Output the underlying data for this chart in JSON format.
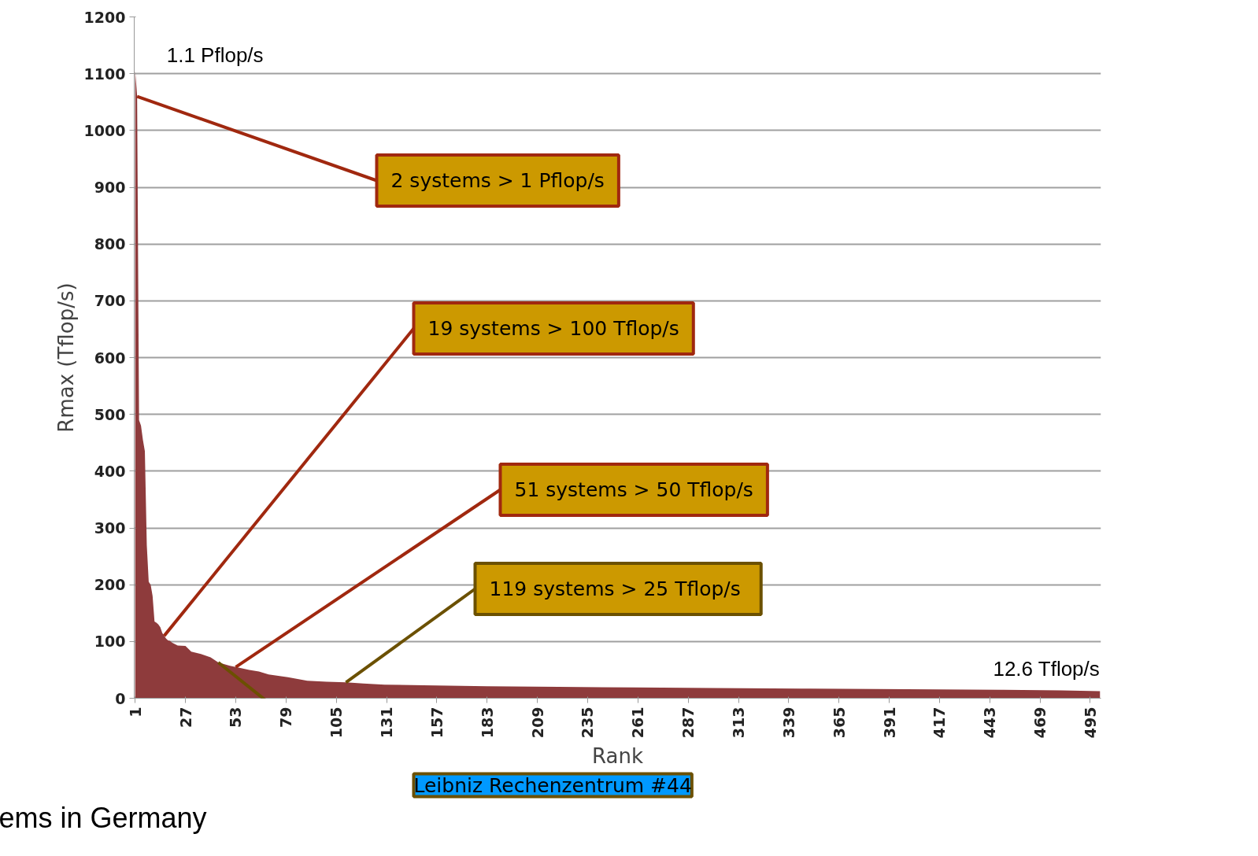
{
  "chart_data": {
    "type": "area",
    "xlabel": "Rank",
    "ylabel": "Rmax (Tflop/s)",
    "x": [
      1,
      2,
      3,
      4,
      5,
      6,
      7,
      8,
      9,
      10,
      11,
      12,
      13,
      14,
      15,
      16,
      17,
      18,
      19,
      20,
      23,
      27,
      30,
      35,
      40,
      44,
      50,
      53,
      60,
      65,
      70,
      80,
      90,
      100,
      110,
      119,
      130,
      150,
      183,
      220,
      260,
      300,
      350,
      400,
      450,
      480,
      500
    ],
    "series": [
      {
        "color": "#8e3b3c",
        "values": [
          1105,
          1060,
          490,
          480,
          455,
          435,
          270,
          205,
          200,
          180,
          135,
          133,
          130,
          125,
          115,
          110,
          105,
          102,
          101,
          98,
          93,
          92,
          82,
          78,
          72,
          63,
          57,
          55,
          50,
          47,
          42,
          37,
          31,
          29,
          28,
          26,
          24,
          23,
          21,
          20,
          19,
          18,
          17,
          16,
          15,
          14,
          12.6
        ]
      }
    ],
    "xlim": [
      0.5,
      500.5
    ],
    "xticks": [
      1,
      27,
      53,
      79,
      105,
      131,
      157,
      183,
      209,
      235,
      261,
      287,
      313,
      339,
      365,
      391,
      417,
      443,
      469,
      495
    ],
    "ylim": [
      0,
      1200
    ],
    "yticks": [
      0,
      100,
      200,
      300,
      400,
      500,
      600,
      700,
      800,
      900,
      1000,
      1100,
      1200
    ],
    "grid": "y",
    "annotations": [
      {
        "text": "1.1 Pflop/s",
        "x": 1,
        "y": 1105
      },
      {
        "text": "2 systems > 1 Pflop/s",
        "x": 2,
        "y": 1060
      },
      {
        "text": "19 systems > 100 Tflop/s",
        "x": 16,
        "y": 110
      },
      {
        "text": "51 systems > 50 Tflop/s",
        "x": 53,
        "y": 55
      },
      {
        "text": "119  systems > 25 Tflop/s",
        "x": 110,
        "y": 28
      },
      {
        "text": "Leibniz Rechenzentrum #44",
        "x": 44,
        "y": 63
      },
      {
        "text": "12.6 Tflop/s",
        "x": 500,
        "y": 12.6
      },
      "ems in Germany"
    ]
  }
}
